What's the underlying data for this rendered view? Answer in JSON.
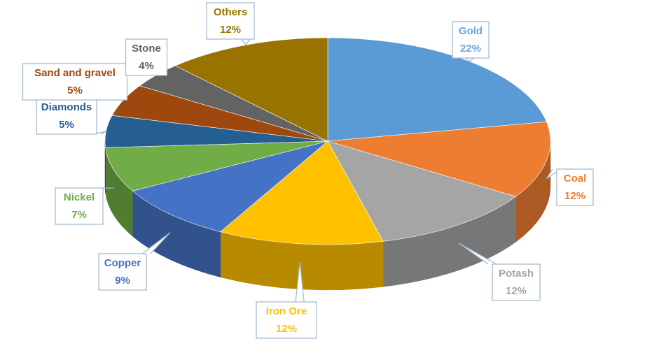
{
  "chart_data": {
    "type": "pie",
    "categories": [
      "Gold",
      "Coal",
      "Potash",
      "Iron Ore",
      "Copper",
      "Nickel",
      "Diamonds",
      "Sand and gravel",
      "Stone",
      "Others"
    ],
    "values": [
      22,
      12,
      12,
      12,
      9,
      7,
      5,
      5,
      4,
      12
    ],
    "value_labels": [
      "22%",
      "12%",
      "12%",
      "12%",
      "9%",
      "7%",
      "5%",
      "5%",
      "4%",
      "12%"
    ],
    "colors": [
      "#5b9bd5",
      "#ed7d31",
      "#a5a5a5",
      "#ffc000",
      "#4472c4",
      "#70ad47",
      "#255e91",
      "#9e480e",
      "#636363",
      "#997300"
    ]
  }
}
